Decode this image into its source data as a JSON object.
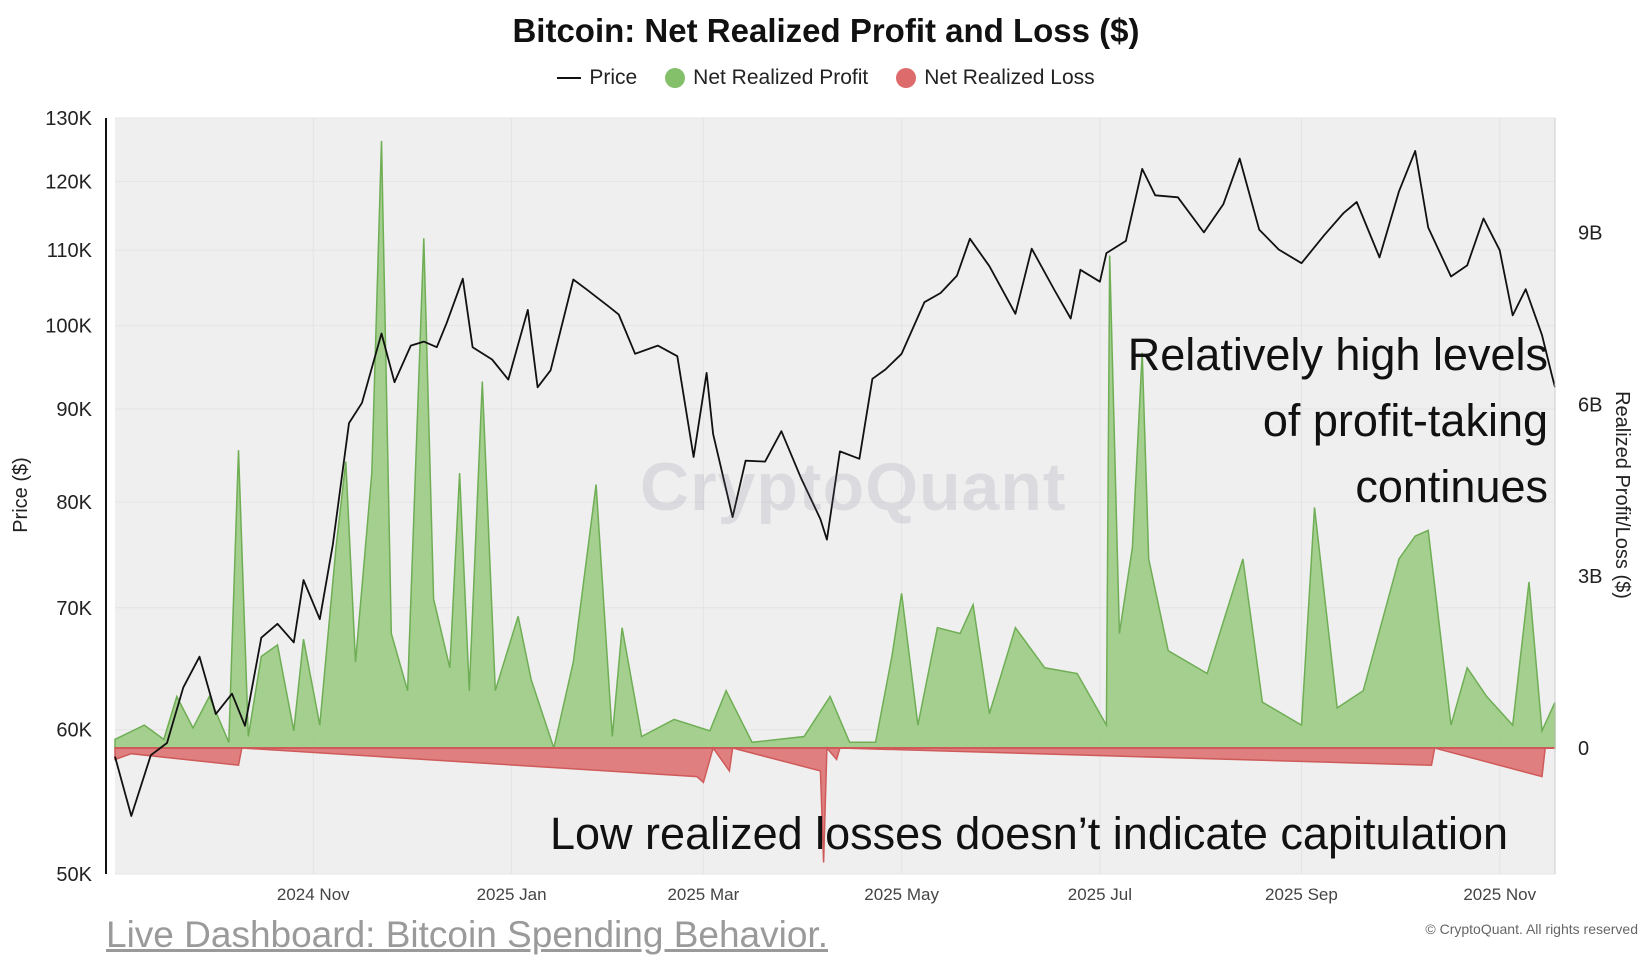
{
  "title": "Bitcoin: Net Realized Profit and Loss ($)",
  "legend": {
    "price": "Price",
    "profit": "Net Realized Profit",
    "loss": "Net Realized Loss"
  },
  "colors": {
    "price": "#111111",
    "profit_fill": "#9bcb84",
    "profit_line": "#6fae55",
    "loss_fill": "#e07f7f",
    "loss_line": "#cf5a5a",
    "plot_bg": "#efefef"
  },
  "watermark": "CryptoQuant",
  "annotations": {
    "high_profit": [
      "Relatively high levels",
      "of profit-taking",
      "continues"
    ],
    "low_losses": "Low realized losses doesn’t indicate capitulation"
  },
  "footer": {
    "link": "Live Dashboard: Bitcoin Spending Behavior.",
    "copyright": "© CryptoQuant. All rights reserved"
  },
  "chart_data": {
    "type": "line",
    "title": "Bitcoin: Net Realized Profit and Loss ($)",
    "xlabel": "",
    "ylabel_left": "Price ($)",
    "ylabel_right": "Realized Profit/Loss ($)",
    "x_range": [
      "2024-09-01",
      "2025-11-18"
    ],
    "x_tick_labels": [
      "2024 Nov",
      "2025 Jan",
      "2025 Mar",
      "2025 May",
      "2025 Jul",
      "2025 Sep",
      "2025 Nov"
    ],
    "x_tick_dates": [
      "2024-11-01",
      "2025-01-01",
      "2025-03-01",
      "2025-05-01",
      "2025-07-01",
      "2025-09-01",
      "2025-11-01"
    ],
    "y_left": {
      "scale": "log",
      "ylim": [
        50000,
        130000
      ],
      "ticks": [
        50000,
        60000,
        70000,
        80000,
        90000,
        100000,
        110000,
        120000,
        130000
      ],
      "tick_labels": [
        "50K",
        "60K",
        "70K",
        "80K",
        "90K",
        "100K",
        "110K",
        "120K",
        "130K"
      ]
    },
    "y_right": {
      "scale": "linear",
      "ylim": [
        -2200000000,
        11000000000
      ],
      "ticks": [
        0,
        3000000000,
        6000000000,
        9000000000
      ],
      "tick_labels": [
        "0",
        "3B",
        "6B",
        "9B"
      ]
    },
    "grid": true,
    "legend_position": "top-center",
    "series": [
      {
        "name": "Price",
        "axis": "left",
        "points": [
          [
            "2024-09-01",
            58000
          ],
          [
            "2024-09-06",
            53800
          ],
          [
            "2024-09-12",
            58100
          ],
          [
            "2024-09-17",
            59000
          ],
          [
            "2024-09-22",
            63300
          ],
          [
            "2024-09-27",
            65800
          ],
          [
            "2024-10-02",
            61200
          ],
          [
            "2024-10-07",
            62800
          ],
          [
            "2024-10-11",
            60300
          ],
          [
            "2024-10-16",
            67400
          ],
          [
            "2024-10-21",
            68600
          ],
          [
            "2024-10-26",
            67000
          ],
          [
            "2024-10-29",
            72500
          ],
          [
            "2024-11-03",
            69000
          ],
          [
            "2024-11-07",
            75800
          ],
          [
            "2024-11-12",
            88400
          ],
          [
            "2024-11-16",
            90700
          ],
          [
            "2024-11-22",
            99000
          ],
          [
            "2024-11-26",
            93100
          ],
          [
            "2024-12-01",
            97500
          ],
          [
            "2024-12-05",
            98000
          ],
          [
            "2024-12-09",
            97300
          ],
          [
            "2024-12-12",
            100300
          ],
          [
            "2024-12-17",
            106100
          ],
          [
            "2024-12-20",
            97300
          ],
          [
            "2024-12-26",
            95800
          ],
          [
            "2024-12-31",
            93400
          ],
          [
            "2025-01-06",
            102000
          ],
          [
            "2025-01-09",
            92500
          ],
          [
            "2025-01-13",
            94500
          ],
          [
            "2025-01-20",
            106000
          ],
          [
            "2025-01-24",
            104700
          ],
          [
            "2025-01-31",
            102400
          ],
          [
            "2025-02-03",
            101400
          ],
          [
            "2025-02-08",
            96500
          ],
          [
            "2025-02-15",
            97500
          ],
          [
            "2025-02-21",
            96200
          ],
          [
            "2025-02-26",
            84700
          ],
          [
            "2025-03-02",
            94200
          ],
          [
            "2025-03-04",
            87200
          ],
          [
            "2025-03-10",
            78500
          ],
          [
            "2025-03-14",
            84300
          ],
          [
            "2025-03-20",
            84200
          ],
          [
            "2025-03-25",
            87500
          ],
          [
            "2025-03-31",
            82500
          ],
          [
            "2025-04-06",
            78300
          ],
          [
            "2025-04-08",
            76300
          ],
          [
            "2025-04-12",
            85300
          ],
          [
            "2025-04-18",
            84500
          ],
          [
            "2025-04-22",
            93500
          ],
          [
            "2025-04-26",
            94600
          ],
          [
            "2025-05-01",
            96500
          ],
          [
            "2025-05-08",
            103000
          ],
          [
            "2025-05-13",
            104200
          ],
          [
            "2025-05-18",
            106500
          ],
          [
            "2025-05-22",
            111600
          ],
          [
            "2025-05-28",
            107800
          ],
          [
            "2025-06-05",
            101500
          ],
          [
            "2025-06-10",
            110200
          ],
          [
            "2025-06-17",
            104600
          ],
          [
            "2025-06-22",
            100900
          ],
          [
            "2025-06-25",
            107300
          ],
          [
            "2025-07-01",
            105700
          ],
          [
            "2025-07-03",
            109600
          ],
          [
            "2025-07-09",
            111300
          ],
          [
            "2025-07-14",
            121900
          ],
          [
            "2025-07-18",
            117900
          ],
          [
            "2025-07-25",
            117600
          ],
          [
            "2025-08-02",
            112500
          ],
          [
            "2025-08-08",
            116600
          ],
          [
            "2025-08-13",
            123500
          ],
          [
            "2025-08-19",
            112900
          ],
          [
            "2025-08-25",
            110100
          ],
          [
            "2025-09-01",
            108200
          ],
          [
            "2025-09-08",
            112100
          ],
          [
            "2025-09-14",
            115300
          ],
          [
            "2025-09-18",
            116900
          ],
          [
            "2025-09-25",
            109000
          ],
          [
            "2025-10-01",
            118500
          ],
          [
            "2025-10-06",
            124700
          ],
          [
            "2025-10-10",
            113200
          ],
          [
            "2025-10-17",
            106400
          ],
          [
            "2025-10-22",
            107900
          ],
          [
            "2025-10-27",
            114500
          ],
          [
            "2025-11-01",
            110000
          ],
          [
            "2025-11-05",
            101300
          ],
          [
            "2025-11-09",
            104700
          ],
          [
            "2025-11-14",
            98800
          ],
          [
            "2025-11-17",
            94000
          ],
          [
            "2025-11-18",
            92500
          ]
        ]
      },
      {
        "name": "Net Realized Profit",
        "axis": "right",
        "points": [
          [
            "2024-09-01",
            150000000
          ],
          [
            "2024-09-10",
            400000000
          ],
          [
            "2024-09-16",
            150000000
          ],
          [
            "2024-09-20",
            900000000
          ],
          [
            "2024-09-25",
            350000000
          ],
          [
            "2024-09-30",
            900000000
          ],
          [
            "2024-10-06",
            100000000
          ],
          [
            "2024-10-09",
            5200000000
          ],
          [
            "2024-10-12",
            200000000
          ],
          [
            "2024-10-16",
            1600000000
          ],
          [
            "2024-10-21",
            1800000000
          ],
          [
            "2024-10-26",
            300000000
          ],
          [
            "2024-10-29",
            1900000000
          ],
          [
            "2024-11-03",
            400000000
          ],
          [
            "2024-11-08",
            3500000000
          ],
          [
            "2024-11-11",
            5000000000
          ],
          [
            "2024-11-14",
            1500000000
          ],
          [
            "2024-11-19",
            4800000000
          ],
          [
            "2024-11-22",
            10600000000
          ],
          [
            "2024-11-25",
            2000000000
          ],
          [
            "2024-11-30",
            1000000000
          ],
          [
            "2024-12-05",
            8900000000
          ],
          [
            "2024-12-08",
            2600000000
          ],
          [
            "2024-12-13",
            1400000000
          ],
          [
            "2024-12-16",
            4800000000
          ],
          [
            "2024-12-19",
            1000000000
          ],
          [
            "2024-12-23",
            6400000000
          ],
          [
            "2024-12-27",
            1000000000
          ],
          [
            "2025-01-03",
            2300000000
          ],
          [
            "2025-01-07",
            1200000000
          ],
          [
            "2025-01-14",
            0
          ],
          [
            "2025-01-20",
            1500000000
          ],
          [
            "2025-01-27",
            4600000000
          ],
          [
            "2025-02-01",
            200000000
          ],
          [
            "2025-02-04",
            2100000000
          ],
          [
            "2025-02-10",
            200000000
          ],
          [
            "2025-02-20",
            500000000
          ],
          [
            "2025-03-03",
            300000000
          ],
          [
            "2025-03-08",
            1000000000
          ],
          [
            "2025-03-16",
            100000000
          ],
          [
            "2025-04-01",
            200000000
          ],
          [
            "2025-04-09",
            900000000
          ],
          [
            "2025-04-15",
            100000000
          ],
          [
            "2025-04-23",
            100000000
          ],
          [
            "2025-04-28",
            1600000000
          ],
          [
            "2025-05-01",
            2700000000
          ],
          [
            "2025-05-06",
            400000000
          ],
          [
            "2025-05-12",
            2100000000
          ],
          [
            "2025-05-19",
            2000000000
          ],
          [
            "2025-05-23",
            2500000000
          ],
          [
            "2025-05-28",
            600000000
          ],
          [
            "2025-06-05",
            2100000000
          ],
          [
            "2025-06-14",
            1400000000
          ],
          [
            "2025-06-24",
            1300000000
          ],
          [
            "2025-07-03",
            400000000
          ],
          [
            "2025-07-04",
            8600000000
          ],
          [
            "2025-07-07",
            2000000000
          ],
          [
            "2025-07-11",
            3500000000
          ],
          [
            "2025-07-14",
            6900000000
          ],
          [
            "2025-07-16",
            3300000000
          ],
          [
            "2025-07-22",
            1700000000
          ],
          [
            "2025-08-03",
            1300000000
          ],
          [
            "2025-08-14",
            3300000000
          ],
          [
            "2025-08-20",
            800000000
          ],
          [
            "2025-09-01",
            400000000
          ],
          [
            "2025-09-05",
            4200000000
          ],
          [
            "2025-09-12",
            700000000
          ],
          [
            "2025-09-20",
            1000000000
          ],
          [
            "2025-10-01",
            3300000000
          ],
          [
            "2025-10-06",
            3700000000
          ],
          [
            "2025-10-10",
            3800000000
          ],
          [
            "2025-10-17",
            400000000
          ],
          [
            "2025-10-22",
            1400000000
          ],
          [
            "2025-10-28",
            900000000
          ],
          [
            "2025-11-05",
            400000000
          ],
          [
            "2025-11-10",
            2900000000
          ],
          [
            "2025-11-14",
            300000000
          ],
          [
            "2025-11-18",
            800000000
          ]
        ]
      },
      {
        "name": "Net Realized Loss",
        "axis": "right",
        "points": [
          [
            "2024-09-01",
            -200000000
          ],
          [
            "2024-09-06",
            -100000000
          ],
          [
            "2024-10-09",
            -300000000
          ],
          [
            "2024-10-10",
            0
          ],
          [
            "2025-02-27",
            -500000000
          ],
          [
            "2025-03-01",
            -600000000
          ],
          [
            "2025-03-04",
            0
          ],
          [
            "2025-03-09",
            -400000000
          ],
          [
            "2025-03-10",
            0
          ],
          [
            "2025-04-06",
            -400000000
          ],
          [
            "2025-04-07",
            -2000000000
          ],
          [
            "2025-04-08",
            0
          ],
          [
            "2025-04-11",
            -200000000
          ],
          [
            "2025-04-12",
            0
          ],
          [
            "2025-10-11",
            -300000000
          ],
          [
            "2025-10-12",
            0
          ],
          [
            "2025-11-14",
            -500000000
          ],
          [
            "2025-11-15",
            0
          ],
          [
            "2025-11-18",
            0
          ]
        ]
      }
    ]
  }
}
